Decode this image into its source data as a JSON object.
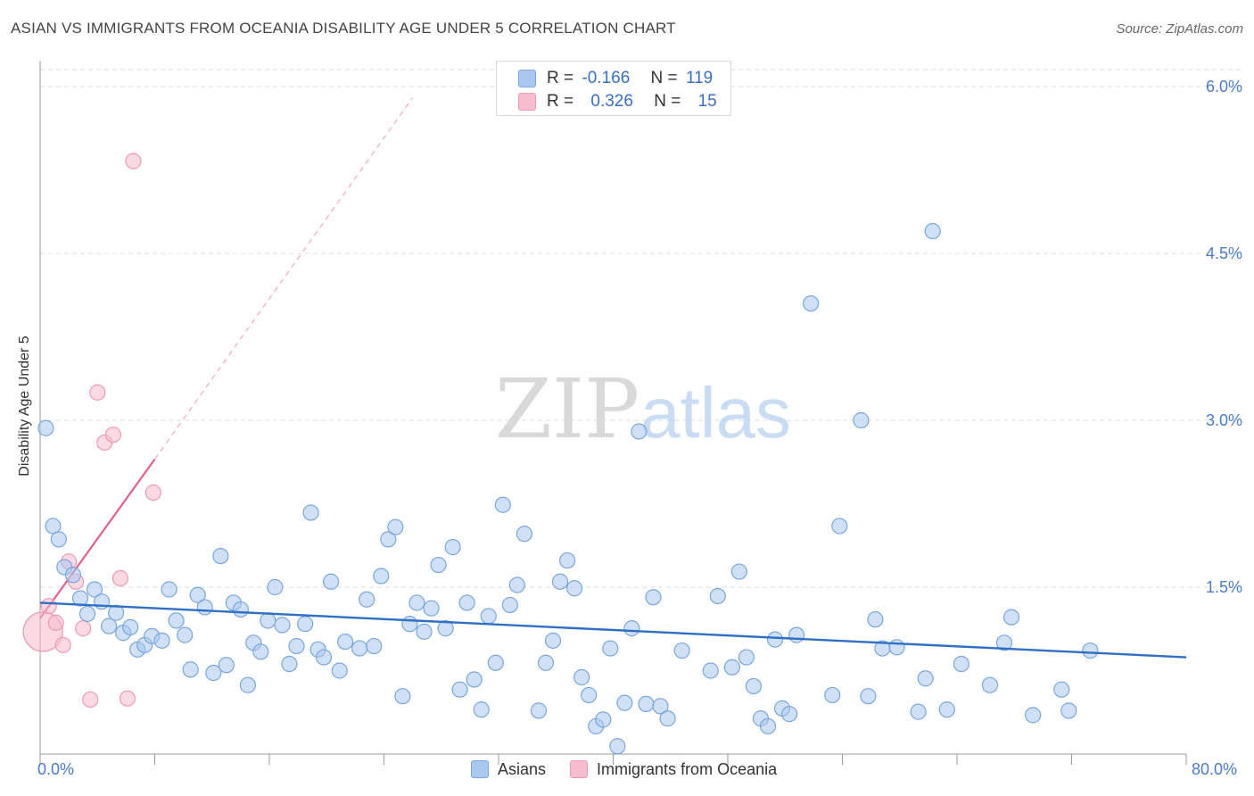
{
  "title": "ASIAN VS IMMIGRANTS FROM OCEANIA DISABILITY AGE UNDER 5 CORRELATION CHART",
  "source": "Source: ZipAtlas.com",
  "watermark": {
    "zip": "ZIP",
    "atlas": "atlas"
  },
  "legend": {
    "rows": [
      {
        "r_label": "R =",
        "r_value": "-0.166",
        "n_label": "N =",
        "n_value": "119"
      },
      {
        "r_label": "R =",
        "r_value": "0.326",
        "n_label": "N =",
        "n_value": "15"
      }
    ]
  },
  "colors": {
    "asians_fill": "#aac8f0",
    "asians_stroke": "#7aa6dc",
    "asians_line": "#2f6fc4",
    "oceania_fill": "#f7bccd",
    "oceania_stroke": "#ee9ab3",
    "oceania_line": "#e0608c",
    "grid": "#dddddd",
    "tick_text": "#4a7cc4"
  },
  "chart_data": {
    "type": "scatter",
    "title": "ASIAN VS IMMIGRANTS FROM OCEANIA DISABILITY AGE UNDER 5 CORRELATION CHART",
    "xlabel": "",
    "ylabel": "Disability Age Under 5",
    "xlim": [
      0,
      80
    ],
    "ylim": [
      0,
      6.3
    ],
    "x_tick_labels": [
      "0.0%",
      "80.0%"
    ],
    "y_ticks": [
      1.5,
      3.0,
      4.5,
      6.0
    ],
    "y_tick_labels": [
      "1.5%",
      "3.0%",
      "4.5%",
      "6.0%"
    ],
    "grid": "horizontal dashed",
    "legend_position": "top-center and bottom",
    "series": [
      {
        "name": "Asians",
        "r": -0.166,
        "n": 119,
        "trend": {
          "x": [
            0,
            80
          ],
          "y": [
            1.36,
            0.87
          ]
        },
        "points": [
          [
            0.4,
            2.93
          ],
          [
            0.9,
            2.05
          ],
          [
            1.3,
            1.93
          ],
          [
            1.7,
            1.68
          ],
          [
            2.3,
            1.61
          ],
          [
            2.8,
            1.4
          ],
          [
            3.3,
            1.26
          ],
          [
            3.8,
            1.48
          ],
          [
            4.3,
            1.37
          ],
          [
            4.8,
            1.15
          ],
          [
            5.3,
            1.27
          ],
          [
            5.8,
            1.09
          ],
          [
            6.3,
            1.14
          ],
          [
            6.8,
            0.94
          ],
          [
            7.3,
            0.98
          ],
          [
            7.8,
            1.06
          ],
          [
            8.5,
            1.02
          ],
          [
            9.0,
            1.48
          ],
          [
            9.5,
            1.2
          ],
          [
            10.1,
            1.07
          ],
          [
            10.5,
            0.76
          ],
          [
            11.0,
            1.43
          ],
          [
            11.5,
            1.32
          ],
          [
            12.1,
            0.73
          ],
          [
            12.6,
            1.78
          ],
          [
            13.0,
            0.8
          ],
          [
            13.5,
            1.36
          ],
          [
            14.0,
            1.3
          ],
          [
            14.5,
            0.62
          ],
          [
            14.9,
            1.0
          ],
          [
            15.4,
            0.92
          ],
          [
            15.9,
            1.2
          ],
          [
            16.4,
            1.5
          ],
          [
            16.9,
            1.16
          ],
          [
            17.4,
            0.81
          ],
          [
            17.9,
            0.97
          ],
          [
            18.5,
            1.17
          ],
          [
            18.9,
            2.17
          ],
          [
            19.4,
            0.94
          ],
          [
            19.8,
            0.87
          ],
          [
            20.3,
            1.55
          ],
          [
            20.9,
            0.75
          ],
          [
            21.3,
            1.01
          ],
          [
            22.3,
            0.95
          ],
          [
            22.8,
            1.39
          ],
          [
            23.3,
            0.97
          ],
          [
            23.8,
            1.6
          ],
          [
            24.3,
            1.93
          ],
          [
            24.8,
            2.04
          ],
          [
            25.3,
            0.52
          ],
          [
            25.8,
            1.17
          ],
          [
            26.3,
            1.36
          ],
          [
            26.8,
            1.1
          ],
          [
            27.3,
            1.31
          ],
          [
            27.8,
            1.7
          ],
          [
            28.3,
            1.13
          ],
          [
            28.8,
            1.86
          ],
          [
            29.3,
            0.58
          ],
          [
            29.8,
            1.36
          ],
          [
            30.3,
            0.67
          ],
          [
            30.8,
            0.4
          ],
          [
            31.3,
            1.24
          ],
          [
            31.8,
            0.82
          ],
          [
            32.3,
            2.24
          ],
          [
            32.8,
            1.34
          ],
          [
            33.3,
            1.52
          ],
          [
            33.8,
            1.98
          ],
          [
            34.8,
            0.39
          ],
          [
            35.3,
            0.82
          ],
          [
            35.8,
            1.02
          ],
          [
            36.3,
            1.55
          ],
          [
            36.8,
            1.74
          ],
          [
            37.3,
            1.49
          ],
          [
            37.8,
            0.69
          ],
          [
            38.3,
            0.53
          ],
          [
            38.8,
            0.25
          ],
          [
            39.3,
            0.31
          ],
          [
            39.8,
            0.95
          ],
          [
            40.3,
            0.07
          ],
          [
            40.8,
            0.46
          ],
          [
            41.3,
            1.13
          ],
          [
            41.8,
            2.9
          ],
          [
            42.3,
            0.45
          ],
          [
            42.8,
            1.41
          ],
          [
            43.3,
            0.43
          ],
          [
            43.8,
            0.32
          ],
          [
            44.8,
            0.93
          ],
          [
            46.8,
            0.75
          ],
          [
            47.3,
            1.42
          ],
          [
            48.3,
            0.78
          ],
          [
            48.8,
            1.64
          ],
          [
            49.3,
            0.87
          ],
          [
            49.8,
            0.61
          ],
          [
            50.3,
            0.32
          ],
          [
            50.8,
            0.25
          ],
          [
            51.3,
            1.03
          ],
          [
            51.8,
            0.41
          ],
          [
            52.3,
            0.36
          ],
          [
            52.8,
            1.07
          ],
          [
            53.8,
            4.05
          ],
          [
            55.3,
            0.53
          ],
          [
            55.8,
            2.05
          ],
          [
            57.3,
            3.0
          ],
          [
            57.8,
            0.52
          ],
          [
            58.3,
            1.21
          ],
          [
            58.8,
            0.95
          ],
          [
            59.8,
            0.96
          ],
          [
            61.3,
            0.38
          ],
          [
            61.8,
            0.68
          ],
          [
            62.3,
            4.7
          ],
          [
            63.3,
            0.4
          ],
          [
            64.3,
            0.81
          ],
          [
            66.3,
            0.62
          ],
          [
            67.3,
            1.0
          ],
          [
            67.8,
            1.23
          ],
          [
            69.3,
            0.35
          ],
          [
            71.3,
            0.58
          ],
          [
            71.8,
            0.39
          ],
          [
            73.3,
            0.93
          ]
        ]
      },
      {
        "name": "Immigrants from Oceania",
        "r": 0.326,
        "n": 15,
        "trend": {
          "x": [
            0,
            8.0,
            26.0
          ],
          "y": [
            1.22,
            2.65,
            5.9
          ]
        },
        "points": [
          [
            0.2,
            1.1
          ],
          [
            0.6,
            1.33
          ],
          [
            1.1,
            1.18
          ],
          [
            1.6,
            0.98
          ],
          [
            2.0,
            1.73
          ],
          [
            2.5,
            1.55
          ],
          [
            3.0,
            1.13
          ],
          [
            3.5,
            0.49
          ],
          [
            4.0,
            3.25
          ],
          [
            4.5,
            2.8
          ],
          [
            5.1,
            2.87
          ],
          [
            5.6,
            1.58
          ],
          [
            6.1,
            0.5
          ],
          [
            6.5,
            5.33
          ],
          [
            7.9,
            2.35
          ]
        ]
      }
    ]
  },
  "axis": {
    "x_left": "0.0%",
    "x_right": "80.0%",
    "ylabel": "Disability Age Under 5"
  }
}
